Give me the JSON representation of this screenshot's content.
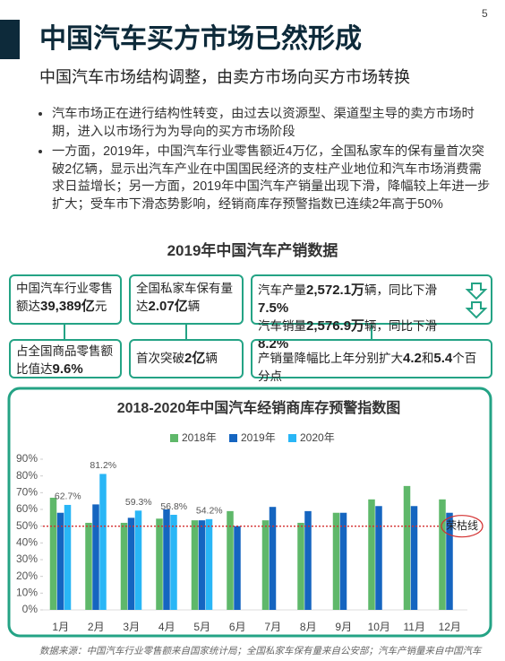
{
  "page_number": "5",
  "title": "中国汽车买方市场已然形成",
  "subtitle": "中国汽车市场结构调整，由卖方市场向买方市场转换",
  "bullets": [
    "汽车市场正在进行结构性转变，由过去以资源型、渠道型主导的卖方市场时期，进入以市场行为为导向的买方市场阶段",
    "一方面，2019年，中国汽车行业零售额近4万亿，全国私家车的保有量首次突破2亿辆，显示出汽车产业在中国国民经济的支柱产业地位和汽车市场消费需求日益增长；另一方面，2019年中国汽车产销量出现下滑，降幅较上年进一步扩大；受车市下滑态势影响，经销商库存预警指数已连续2年高于50%"
  ],
  "section_title": "2019年中国汽车产销数据",
  "boxes": [
    {
      "lines": [
        [
          {
            "text": "中国汽车行业零售额达",
            "bold": false
          },
          {
            "text": "39,389亿",
            "bold": true
          },
          {
            "text": "元",
            "bold": false
          }
        ]
      ]
    },
    {
      "lines": [
        [
          {
            "text": "全国私家车保有量达",
            "bold": false
          },
          {
            "text": "2.07亿",
            "bold": true
          },
          {
            "text": "辆",
            "bold": false
          }
        ]
      ]
    },
    {
      "lines": [
        [
          {
            "text": "汽车产量",
            "bold": false
          },
          {
            "text": "2,572.1万",
            "bold": true
          },
          {
            "text": "辆，同比下滑",
            "bold": false
          },
          {
            "text": "7.5%",
            "bold": true
          }
        ],
        [
          {
            "text": "汽车销量",
            "bold": false
          },
          {
            "text": "2,576.9万",
            "bold": true
          },
          {
            "text": "辆，同比下滑",
            "bold": false
          },
          {
            "text": "8.2%",
            "bold": true
          }
        ]
      ]
    },
    {
      "lines": [
        [
          {
            "text": "占全国商品零售额比值达",
            "bold": false
          },
          {
            "text": "9.6%",
            "bold": true
          }
        ]
      ]
    },
    {
      "lines": [
        [
          {
            "text": "首次突破",
            "bold": false
          },
          {
            "text": "2亿",
            "bold": true
          },
          {
            "text": "辆",
            "bold": false
          }
        ]
      ]
    },
    {
      "lines": [
        [
          {
            "text": "产销量降幅比上年分别扩大",
            "bold": false
          },
          {
            "text": "4.2",
            "bold": true
          },
          {
            "text": "和",
            "bold": false
          },
          {
            "text": "5.4",
            "bold": true
          },
          {
            "text": "个百分点",
            "bold": false
          }
        ]
      ]
    }
  ],
  "source": "数据来源：中国汽车行业零售额来自国家统计局；全国私家车保有量来自公安部；汽车产销量来自中国汽车",
  "chart_data": {
    "type": "bar",
    "title": "2018-2020年中国汽车经销商库存预警指数图",
    "categories": [
      "1月",
      "2月",
      "3月",
      "4月",
      "5月",
      "6月",
      "7月",
      "8月",
      "9月",
      "10月",
      "11月",
      "12月"
    ],
    "series": [
      {
        "name": "2018年",
        "color": "#5fb86a",
        "values": [
          67,
          52,
          52,
          54.5,
          53.5,
          59,
          53.5,
          52,
          58,
          66,
          74,
          66
        ]
      },
      {
        "name": "2019年",
        "color": "#1565c0",
        "values": [
          58,
          63,
          55,
          60,
          53.5,
          50,
          61.5,
          59,
          58,
          62,
          62,
          58
        ]
      },
      {
        "name": "2020年",
        "color": "#29b6f6",
        "values": [
          62.7,
          81.2,
          59.3,
          56.8,
          54.2,
          null,
          null,
          null,
          null,
          null,
          null,
          null
        ],
        "value_labels": [
          "62.7%",
          "81.2%",
          "59.3%",
          "56.8%",
          "54.2%",
          null,
          null,
          null,
          null,
          null,
          null,
          null
        ]
      }
    ],
    "ylim": [
      0,
      90
    ],
    "yticks": [
      {
        "value": 0,
        "label": "0%"
      },
      {
        "value": 10,
        "label": "10%"
      },
      {
        "value": 20,
        "label": "20%"
      },
      {
        "value": 30,
        "label": "30%"
      },
      {
        "value": 40,
        "label": "40%"
      },
      {
        "value": 50,
        "label": "50%"
      },
      {
        "value": 60,
        "label": "60%"
      },
      {
        "value": 70,
        "label": "70%"
      },
      {
        "value": 80,
        "label": "80%"
      },
      {
        "value": 90,
        "label": "90%"
      }
    ],
    "threshold": {
      "value": 50,
      "label": "荣枯线",
      "color": "#d32f2f"
    },
    "grid": false
  }
}
